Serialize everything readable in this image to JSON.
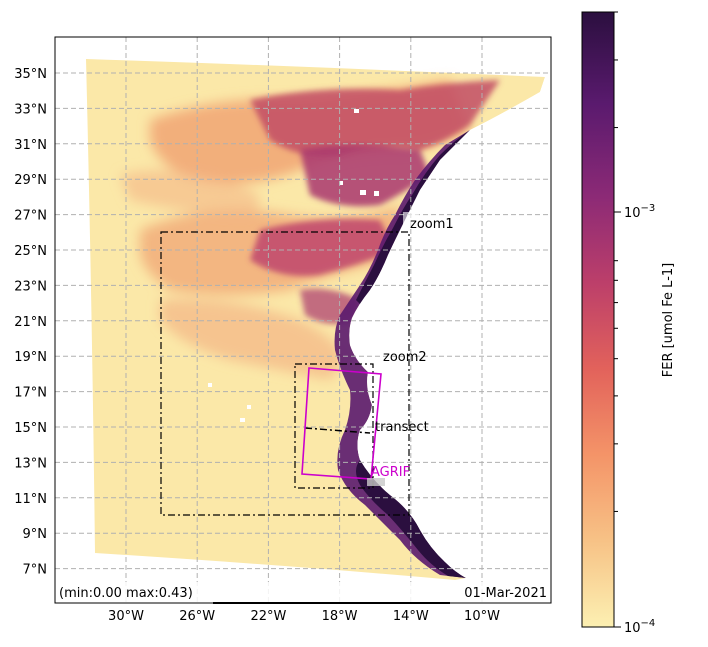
{
  "chart_data": {
    "type": "heatmap",
    "variable_label": "FER [umol Fe L-1]",
    "x_ticks": [
      "30°W",
      "26°W",
      "22°W",
      "18°W",
      "14°W",
      "10°W"
    ],
    "y_ticks": [
      "35°N",
      "33°N",
      "31°N",
      "29°N",
      "27°N",
      "25°N",
      "23°N",
      "21°N",
      "19°N",
      "17°N",
      "15°N",
      "13°N",
      "11°N",
      "9°N",
      "7°N"
    ],
    "grid": true,
    "colorbar": {
      "scale": "log",
      "range": [
        0.0001,
        0.004
      ],
      "ticks": [
        "10^-4",
        "10^-3"
      ],
      "label": "FER [umol Fe L-1]",
      "colormap": [
        "#fcf0b2",
        "#f7c286",
        "#f49468",
        "#e2625b",
        "#bc3f6a",
        "#8c2a76",
        "#5a1a6e",
        "#2b0f3f"
      ]
    },
    "stats_label": "(min:0.00  max:0.43)",
    "date_label": "01-Mar-2021",
    "annotations": [
      {
        "label": "zoom1",
        "color": "#000000",
        "style": "dash-dot"
      },
      {
        "label": "zoom2",
        "color": "#000000",
        "style": "dash-dot"
      },
      {
        "label": "transect",
        "color": "#000000",
        "style": "dash-dot"
      },
      {
        "label": "AGRIF",
        "color": "#cc00cc",
        "style": "solid"
      }
    ]
  },
  "colors": {
    "land": "#ffffff",
    "open_ocean": "#fbe8a8",
    "coastal_high": "#2b0f3f",
    "agrif_box": "#cc00cc"
  }
}
